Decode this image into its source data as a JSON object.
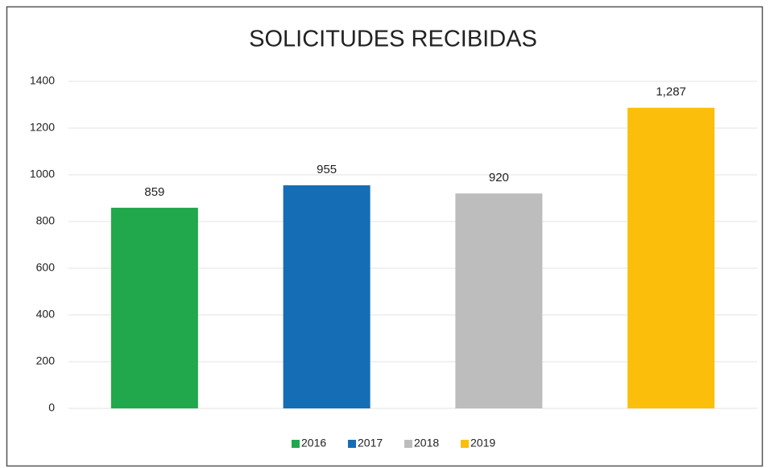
{
  "chart_data": {
    "type": "bar",
    "title": "SOLICITUDES RECIBIDAS",
    "series": [
      {
        "name": "2016",
        "color": "#22a84c",
        "values": [
          859
        ],
        "value_labels": [
          "859"
        ]
      },
      {
        "name": "2017",
        "color": "#156db6",
        "values": [
          955
        ],
        "value_labels": [
          "955"
        ]
      },
      {
        "name": "2018",
        "color": "#bdbdbd",
        "values": [
          920
        ],
        "value_labels": [
          "920"
        ]
      },
      {
        "name": "2019",
        "color": "#fbbf0b",
        "values": [
          1287
        ],
        "value_labels": [
          "1,287"
        ]
      }
    ],
    "ylim": [
      0,
      1400
    ],
    "yticks": [
      0,
      200,
      400,
      600,
      800,
      1000,
      1200,
      1400
    ],
    "grid": true,
    "legend": "bottom"
  }
}
